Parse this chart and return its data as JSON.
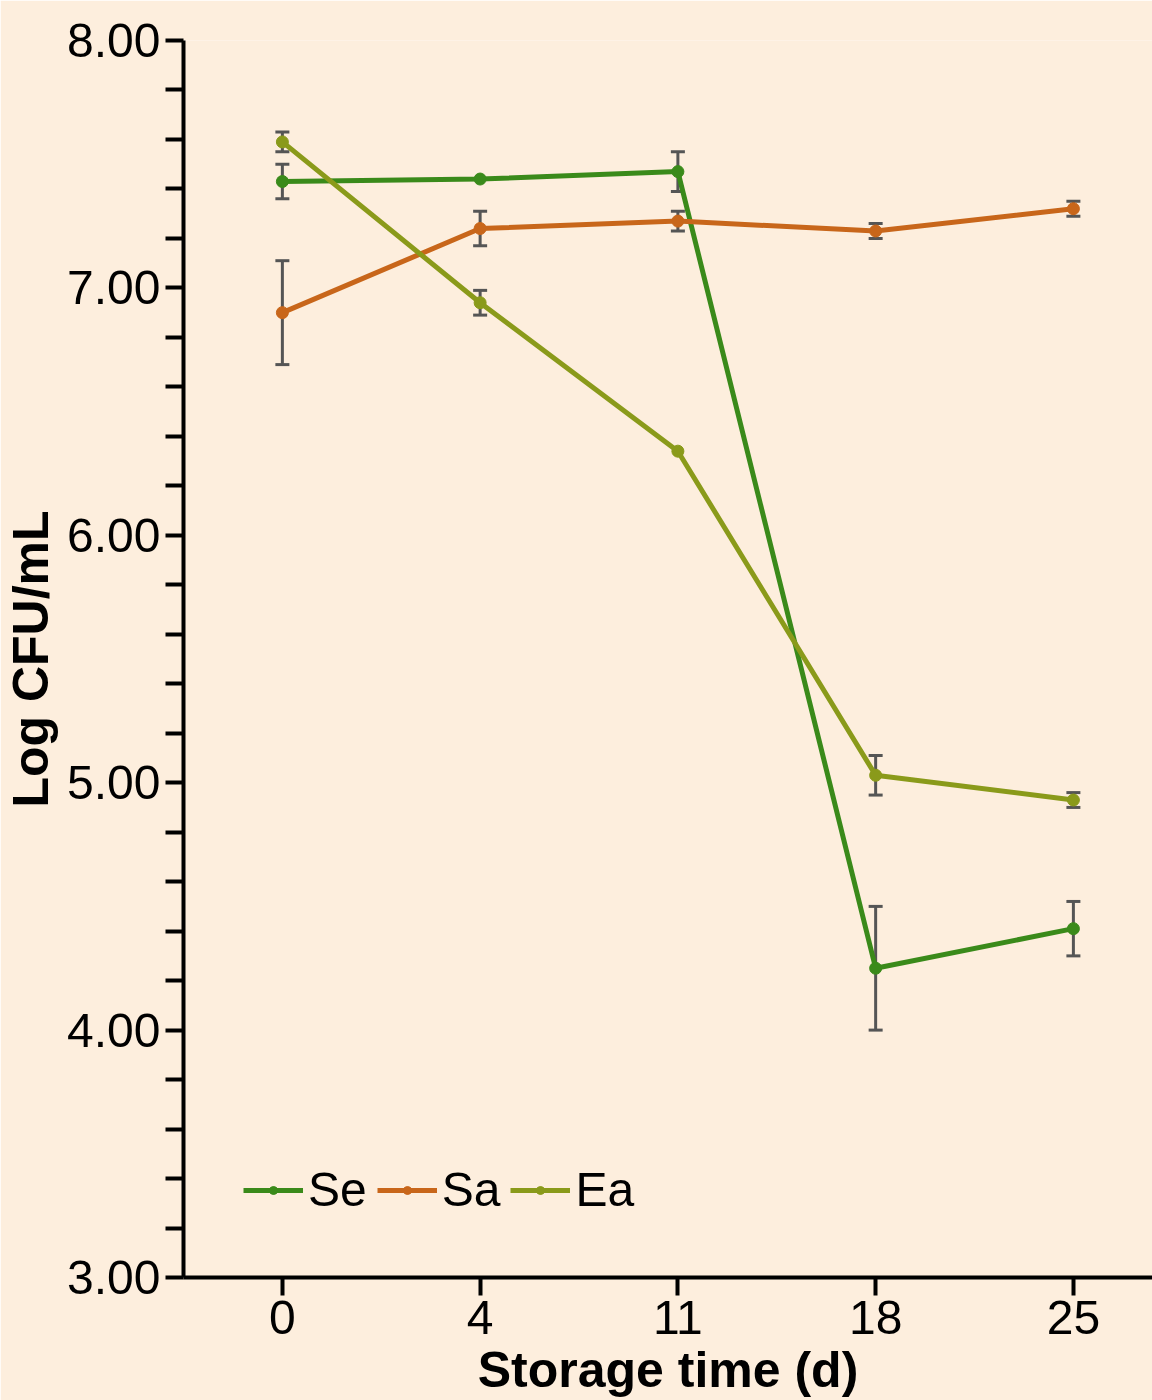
{
  "chart_data": {
    "type": "line",
    "xlabel": "Storage time (d)",
    "ylabel": "Log CFU/mL",
    "categories": [
      "0",
      "4",
      "11",
      "18",
      "25"
    ],
    "series": [
      {
        "name": "Se",
        "color": "#3a8a1a",
        "values": [
          7.43,
          7.44,
          7.47,
          4.25,
          4.41
        ],
        "errors": [
          0.07,
          null,
          0.08,
          0.25,
          0.11
        ]
      },
      {
        "name": "Sa",
        "color": "#c8661a",
        "values": [
          6.9,
          7.24,
          7.27,
          7.23,
          7.32
        ],
        "errors": [
          0.21,
          0.07,
          0.04,
          0.03,
          0.03
        ]
      },
      {
        "name": "Ea",
        "color": "#8a9a1a",
        "values": [
          7.59,
          6.94,
          6.34,
          5.03,
          4.93
        ],
        "errors": [
          0.04,
          0.05,
          null,
          0.08,
          0.03
        ]
      }
    ],
    "ylim": [
      3,
      8
    ],
    "yticks": [
      {
        "value": 3,
        "label": "3.00"
      },
      {
        "value": 4,
        "label": "4.00"
      },
      {
        "value": 5,
        "label": "5.00"
      },
      {
        "value": 6,
        "label": "6.00"
      },
      {
        "value": 7,
        "label": "7.00"
      },
      {
        "value": 8,
        "label": "8.00"
      }
    ],
    "grid": false,
    "legend": "bottom left",
    "marker": "circle",
    "line_style": "solid"
  }
}
